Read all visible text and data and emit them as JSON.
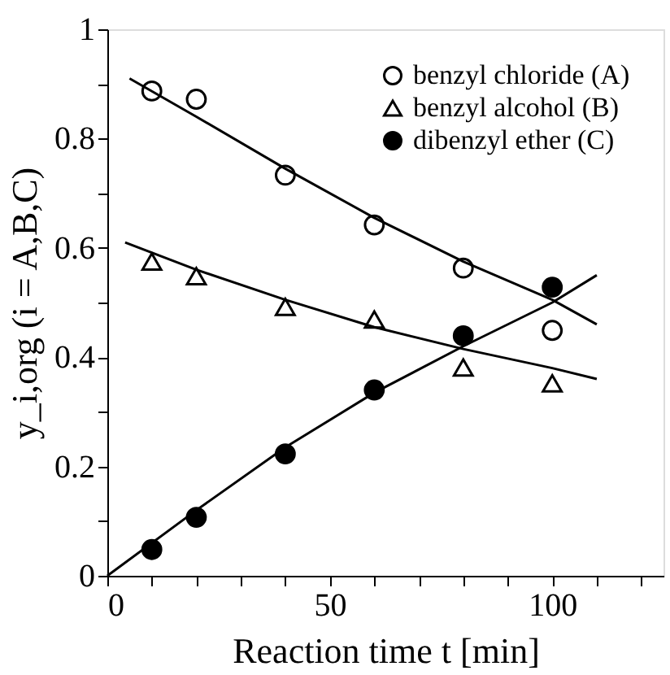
{
  "chart_data": {
    "type": "scatter",
    "xlabel": "Reaction time t  [min]",
    "ylabel": "y_i,org (i = A,B,C)",
    "xlim": [
      0,
      125
    ],
    "xticks": [
      0,
      {
        "value": 10,
        "label": null
      },
      {
        "value": 20,
        "label": null
      },
      {
        "value": 30,
        "label": null
      },
      {
        "value": 40,
        "label": null
      },
      50,
      {
        "value": 60,
        "label": null
      },
      {
        "value": 70,
        "label": null
      },
      {
        "value": 80,
        "label": null
      },
      {
        "value": 90,
        "label": null
      },
      100,
      {
        "value": 110,
        "label": null
      },
      {
        "value": 120,
        "label": null
      }
    ],
    "ylim": [
      0,
      1
    ],
    "yticks": [
      0,
      {
        "value": 0.1,
        "label": null
      },
      0.2,
      {
        "value": 0.3,
        "label": null
      },
      0.4,
      {
        "value": 0.5,
        "label": null
      },
      0.6,
      {
        "value": 0.7,
        "label": null
      },
      0.8,
      {
        "value": 0.9,
        "label": null
      },
      1
    ],
    "grid": false,
    "legend": "top right",
    "series": [
      {
        "name": "benzyl chloride (A)",
        "marker": "circle",
        "color": "#ffffff",
        "x": [
          10,
          20,
          40,
          60,
          80,
          100
        ],
        "values": [
          0.887,
          0.872,
          0.733,
          0.642,
          0.563,
          0.449
        ]
      },
      {
        "name": "benzyl alcohol (B)",
        "marker": "triangle",
        "color": "#ffffff",
        "x": [
          10,
          20,
          40,
          60,
          80,
          100
        ],
        "values": [
          0.575,
          0.548,
          0.492,
          0.469,
          0.381,
          0.352
        ]
      },
      {
        "name": "dibenzyl ether (C)",
        "marker": "circle",
        "color": "#000000",
        "x": [
          10,
          20,
          40,
          60,
          80,
          100
        ],
        "values": [
          0.048,
          0.107,
          0.223,
          0.34,
          0.439,
          0.528
        ]
      },
      {
        "type": "line",
        "color": "#000000",
        "x": [
          5,
          20,
          40,
          60,
          80,
          100,
          110
        ],
        "values": [
          0.91,
          0.84,
          0.745,
          0.655,
          0.575,
          0.505,
          0.46
        ]
      },
      {
        "type": "line",
        "color": "#000000",
        "x": [
          4,
          20,
          40,
          60,
          80,
          100,
          110
        ],
        "values": [
          0.61,
          0.56,
          0.505,
          0.455,
          0.415,
          0.38,
          0.36
        ]
      },
      {
        "type": "line",
        "color": "#000000",
        "x": [
          0,
          20,
          40,
          60,
          80,
          100,
          110
        ],
        "values": [
          0,
          0.12,
          0.235,
          0.335,
          0.42,
          0.5,
          0.55
        ]
      }
    ]
  }
}
